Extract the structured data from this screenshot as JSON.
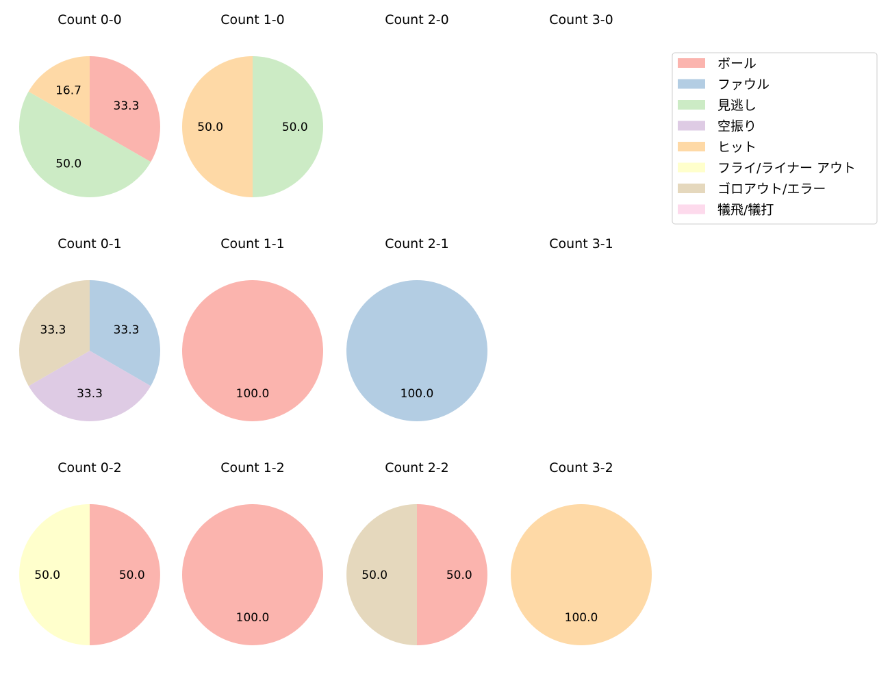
{
  "chart_data": {
    "type": "pie",
    "colors": {
      "ボール": "#fbb4ae",
      "ファウル": "#b3cde3",
      "見逃し": "#ccebc5",
      "空振り": "#decbe4",
      "ヒット": "#fed9a6",
      "フライ/ライナー アウト": "#ffffcc",
      "ゴロアウト/エラー": "#e5d8bd",
      "犠飛/犠打": "#fddaec"
    },
    "legend": {
      "placement": "top-right",
      "entries": [
        "ボール",
        "ファウル",
        "見逃し",
        "空振り",
        "ヒット",
        "フライ/ライナー アウト",
        "ゴロアウト/エラー",
        "犠飛/犠打"
      ]
    },
    "pies": [
      {
        "title": "Count 0-0",
        "row": 0,
        "col": 0,
        "slices": [
          {
            "label": "ボール",
            "value": 33.3
          },
          {
            "label": "見逃し",
            "value": 50.0
          },
          {
            "label": "ヒット",
            "value": 16.7
          }
        ]
      },
      {
        "title": "Count 1-0",
        "row": 0,
        "col": 1,
        "slices": [
          {
            "label": "見逃し",
            "value": 50.0
          },
          {
            "label": "ヒット",
            "value": 50.0
          }
        ]
      },
      {
        "title": "Count 2-0",
        "row": 0,
        "col": 2,
        "slices": []
      },
      {
        "title": "Count 3-0",
        "row": 0,
        "col": 3,
        "slices": []
      },
      {
        "title": "Count 0-1",
        "row": 1,
        "col": 0,
        "slices": [
          {
            "label": "ファウル",
            "value": 33.3
          },
          {
            "label": "空振り",
            "value": 33.3
          },
          {
            "label": "ゴロアウト/エラー",
            "value": 33.3
          }
        ]
      },
      {
        "title": "Count 1-1",
        "row": 1,
        "col": 1,
        "slices": [
          {
            "label": "ボール",
            "value": 100.0
          }
        ]
      },
      {
        "title": "Count 2-1",
        "row": 1,
        "col": 2,
        "slices": [
          {
            "label": "ファウル",
            "value": 100.0
          }
        ]
      },
      {
        "title": "Count 3-1",
        "row": 1,
        "col": 3,
        "slices": []
      },
      {
        "title": "Count 0-2",
        "row": 2,
        "col": 0,
        "slices": [
          {
            "label": "ボール",
            "value": 50.0
          },
          {
            "label": "フライ/ライナー アウト",
            "value": 50.0
          }
        ]
      },
      {
        "title": "Count 1-2",
        "row": 2,
        "col": 1,
        "slices": [
          {
            "label": "ボール",
            "value": 100.0
          }
        ]
      },
      {
        "title": "Count 2-2",
        "row": 2,
        "col": 2,
        "slices": [
          {
            "label": "ボール",
            "value": 50.0
          },
          {
            "label": "ゴロアウト/エラー",
            "value": 50.0
          }
        ]
      },
      {
        "title": "Count 3-2",
        "row": 2,
        "col": 3,
        "slices": [
          {
            "label": "ヒット",
            "value": 100.0
          }
        ]
      }
    ]
  }
}
